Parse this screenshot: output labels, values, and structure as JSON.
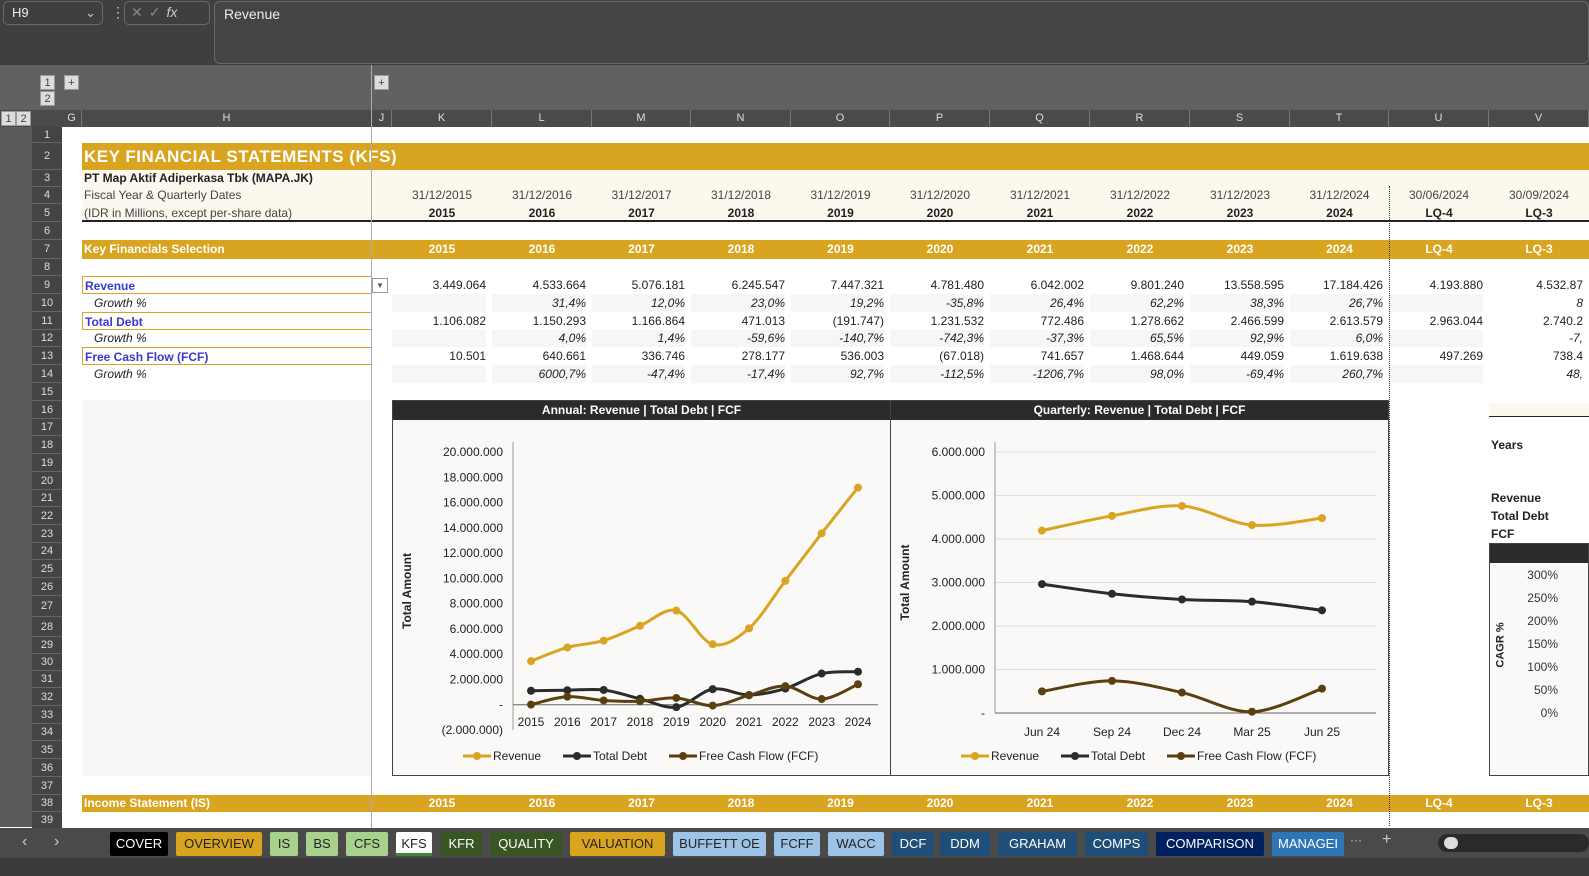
{
  "formula_bar": {
    "name_box": "H9",
    "formula": "Revenue",
    "cancel_icon": "x-icon",
    "enter_icon": "check-icon",
    "fx": "fx"
  },
  "outline": {
    "levels": [
      "1",
      "2"
    ],
    "expand": "+"
  },
  "columns": [
    "G",
    "H",
    "J",
    "K",
    "L",
    "M",
    "N",
    "O",
    "P",
    "Q",
    "R",
    "S",
    "T",
    "U",
    "V"
  ],
  "rows": [
    "1",
    "2",
    "3",
    "4",
    "5",
    "6",
    "7",
    "8",
    "9",
    "10",
    "11",
    "12",
    "13",
    "14",
    "15",
    "16",
    "17",
    "18",
    "19",
    "20",
    "21",
    "22",
    "23",
    "24",
    "25",
    "26",
    "27",
    "28",
    "29",
    "30",
    "31",
    "32",
    "33",
    "34",
    "35",
    "36",
    "37",
    "38",
    "39"
  ],
  "sheet": {
    "title": "KEY FINANCIAL STATEMENTS (KFS)",
    "company": "PT Map Aktif Adiperkasa Tbk (MAPA.JK)",
    "dates_label": "Fiscal Year & Quarterly Dates",
    "units_label": "(IDR in Millions, except per-share data)",
    "dates": [
      "31/12/2015",
      "31/12/2016",
      "31/12/2017",
      "31/12/2018",
      "31/12/2019",
      "31/12/2020",
      "31/12/2021",
      "31/12/2022",
      "31/12/2023",
      "31/12/2024",
      "30/06/2024",
      "30/09/2024"
    ],
    "periods": [
      "2015",
      "2016",
      "2017",
      "2018",
      "2019",
      "2020",
      "2021",
      "2022",
      "2023",
      "2024",
      "LQ-4",
      "LQ-3"
    ],
    "selection_header": "Key Financials Selection",
    "lines": [
      {
        "label": "Revenue",
        "values": [
          "3.449.064",
          "4.533.664",
          "5.076.181",
          "6.245.547",
          "7.447.321",
          "4.781.480",
          "6.042.002",
          "9.801.240",
          "13.558.595",
          "17.184.426",
          "4.193.880",
          "4.532.87"
        ]
      },
      {
        "label": "Growth %",
        "values": [
          "",
          "31,4%",
          "12,0%",
          "23,0%",
          "19,2%",
          "-35,8%",
          "26,4%",
          "62,2%",
          "38,3%",
          "26,7%",
          "",
          "8"
        ]
      },
      {
        "label": "Total Debt",
        "values": [
          "1.106.082",
          "1.150.293",
          "1.166.864",
          "471.013",
          "(191.747)",
          "1.231.532",
          "772.486",
          "1.278.662",
          "2.466.599",
          "2.613.579",
          "2.963.044",
          "2.740.2"
        ]
      },
      {
        "label": "Growth %",
        "values": [
          "",
          "4,0%",
          "1,4%",
          "-59,6%",
          "-140,7%",
          "-742,3%",
          "-37,3%",
          "65,5%",
          "92,9%",
          "6,0%",
          "",
          "-7,"
        ]
      },
      {
        "label": "Free Cash Flow (FCF)",
        "values": [
          "10.501",
          "640.661",
          "336.746",
          "278.177",
          "536.003",
          "(67.018)",
          "741.657",
          "1.468.644",
          "449.059",
          "1.619.638",
          "497.269",
          "738.4"
        ]
      },
      {
        "label": "Growth %",
        "values": [
          "",
          "6000,7%",
          "-47,4%",
          "-17,4%",
          "92,7%",
          "-112,5%",
          "-1206,7%",
          "98,0%",
          "-69,4%",
          "260,7%",
          "",
          "48,"
        ]
      }
    ],
    "income_header": "Income Statement (IS)",
    "cagr_panel": {
      "years_label": "Years",
      "items": [
        "Revenue",
        "Total Debt",
        "FCF"
      ],
      "axis_label": "CAGR %",
      "ticks": [
        "300%",
        "250%",
        "200%",
        "150%",
        "100%",
        "50%",
        "0%"
      ]
    }
  },
  "chart_data": [
    {
      "type": "line",
      "title": "Annual: Revenue | Total Debt | FCF",
      "ylabel": "Total Amount",
      "ylim": [
        -2000000,
        20000000
      ],
      "yticks": [
        "20.000.000",
        "18.000.000",
        "16.000.000",
        "14.000.000",
        "12.000.000",
        "10.000.000",
        "8.000.000",
        "6.000.000",
        "4.000.000",
        "2.000.000",
        "-",
        "(2.000.000)"
      ],
      "categories": [
        "2015",
        "2016",
        "2017",
        "2018",
        "2019",
        "2020",
        "2021",
        "2022",
        "2023",
        "2024"
      ],
      "series": [
        {
          "name": "Revenue",
          "color": "#d9a521",
          "values": [
            3449064,
            4533664,
            5076181,
            6245547,
            7447321,
            4781480,
            6042002,
            9801240,
            13558595,
            17184426
          ]
        },
        {
          "name": "Total Debt",
          "color": "#2b2b2b",
          "values": [
            1106082,
            1150293,
            1166864,
            471013,
            -191747,
            1231532,
            772486,
            1278662,
            2466599,
            2613579
          ]
        },
        {
          "name": "Free Cash Flow (FCF)",
          "color": "#5a4010",
          "values": [
            10501,
            640661,
            336746,
            278177,
            536003,
            -67018,
            741657,
            1468644,
            449059,
            1619638
          ]
        }
      ],
      "legend": "bottom",
      "grid": false
    },
    {
      "type": "line",
      "title": "Quarterly: Revenue | Total Debt | FCF",
      "ylabel": "Total Amount",
      "ylim": [
        0,
        6000000
      ],
      "yticks": [
        "6.000.000",
        "5.000.000",
        "4.000.000",
        "3.000.000",
        "2.000.000",
        "1.000.000",
        "-"
      ],
      "categories": [
        "Jun 24",
        "Sep 24",
        "Dec 24",
        "Mar 25",
        "Jun 25"
      ],
      "series": [
        {
          "name": "Revenue",
          "color": "#d9a521",
          "values": [
            4193880,
            4532870,
            4760000,
            4320000,
            4480000
          ]
        },
        {
          "name": "Total Debt",
          "color": "#2b2b2b",
          "values": [
            2963044,
            2740200,
            2610000,
            2560000,
            2360000
          ]
        },
        {
          "name": "Free Cash Flow (FCF)",
          "color": "#5a4010",
          "values": [
            497269,
            738400,
            470000,
            30000,
            560000
          ]
        }
      ],
      "legend": "bottom",
      "grid": true
    }
  ],
  "tabs": [
    {
      "label": "COVER",
      "bg": "#000000",
      "fg": "#ffffff"
    },
    {
      "label": "OVERVIEW",
      "bg": "#d9a521",
      "fg": "#222"
    },
    {
      "label": "IS",
      "bg": "#a9d18e",
      "fg": "#222"
    },
    {
      "label": "BS",
      "bg": "#a9d18e",
      "fg": "#222"
    },
    {
      "label": "CFS",
      "bg": "#a9d18e",
      "fg": "#222"
    },
    {
      "label": "KFS",
      "bg": "#ffffff",
      "fg": "#222"
    },
    {
      "label": "KFR",
      "bg": "#375623",
      "fg": "#fff"
    },
    {
      "label": "QUALITY",
      "bg": "#375623",
      "fg": "#fff"
    },
    {
      "label": "VALUATION",
      "bg": "#d9a521",
      "fg": "#222"
    },
    {
      "label": "BUFFETT OE",
      "bg": "#9dc3e6",
      "fg": "#222"
    },
    {
      "label": "FCFF",
      "bg": "#9dc3e6",
      "fg": "#222"
    },
    {
      "label": "WACC",
      "bg": "#9dc3e6",
      "fg": "#222"
    },
    {
      "label": "DCF",
      "bg": "#1f4e79",
      "fg": "#fff"
    },
    {
      "label": "DDM",
      "bg": "#1f4e79",
      "fg": "#fff"
    },
    {
      "label": "GRAHAM",
      "bg": "#1f4e79",
      "fg": "#fff"
    },
    {
      "label": "COMPS",
      "bg": "#1f4e79",
      "fg": "#fff"
    },
    {
      "label": "COMPARISON",
      "bg": "#002060",
      "fg": "#fff"
    },
    {
      "label": "MANAGEI",
      "bg": "#2e75b6",
      "fg": "#fff"
    }
  ],
  "tab_controls": {
    "prev": "‹",
    "next": "›",
    "more": "···",
    "add": "+"
  }
}
